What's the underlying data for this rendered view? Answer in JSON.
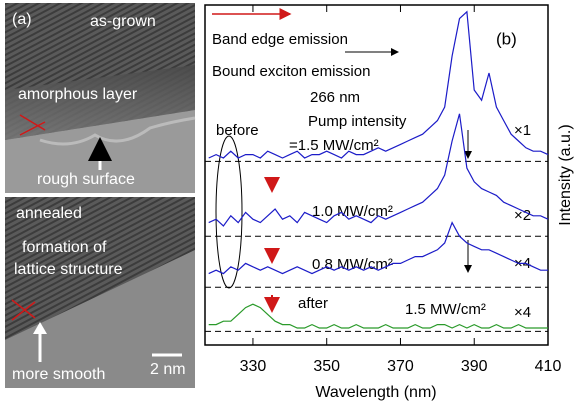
{
  "panel_a": {
    "label": "(a)",
    "top_texts": [
      "as-grown",
      "amorphous layer",
      "rough surface"
    ],
    "bottom_texts": [
      "annealed",
      "formation of",
      "lattice structure",
      "more smooth"
    ],
    "scale_bar": "2 nm"
  },
  "chart_data": {
    "type": "line",
    "panel_label": "(b)",
    "xlabel": "Wavelength (nm)",
    "ylabel": "Intensity (a.u.)",
    "xlim": [
      317,
      410
    ],
    "xticks": [
      330,
      350,
      370,
      390,
      410
    ],
    "ylim": [
      0,
      100
    ],
    "annotations": [
      "Band edge emission",
      "Bound exciton emission",
      "266 nm",
      "Pump intensity",
      "before",
      "after"
    ],
    "x": [
      318,
      320,
      322,
      324,
      326,
      328,
      330,
      332,
      334,
      336,
      338,
      340,
      342,
      344,
      346,
      348,
      350,
      352,
      354,
      356,
      358,
      360,
      362,
      364,
      366,
      368,
      370,
      372,
      374,
      376,
      378,
      380,
      382,
      384,
      386,
      388,
      390,
      392,
      394,
      396,
      398,
      400,
      402,
      404,
      406,
      408,
      410
    ],
    "series": [
      {
        "name": "=1.5 MW/cm²",
        "scale_label": "×1",
        "color": "#1c1cc8",
        "baseline": 54,
        "values": [
          55,
          56,
          55,
          57,
          55,
          56,
          56,
          55,
          57,
          56,
          55,
          56,
          57,
          55,
          56,
          56,
          57,
          56,
          55,
          57,
          56,
          56,
          57,
          58,
          57,
          58,
          59,
          60,
          61,
          62,
          64,
          66,
          70,
          85,
          96,
          98,
          75,
          72,
          80,
          70,
          66,
          62,
          60,
          58,
          57,
          57,
          56
        ]
      },
      {
        "name": "1.0 MW/cm²",
        "scale_label": "×2",
        "color": "#1c1cc8",
        "baseline": 32,
        "values": [
          36,
          37,
          35,
          38,
          36,
          39,
          37,
          36,
          38,
          40,
          37,
          38,
          36,
          39,
          38,
          37,
          36,
          38,
          39,
          37,
          38,
          37,
          36,
          38,
          37,
          38,
          39,
          40,
          41,
          42,
          44,
          46,
          50,
          60,
          68,
          52,
          48,
          46,
          45,
          44,
          42,
          41,
          40,
          39,
          38,
          38,
          37
        ]
      },
      {
        "name": "0.8 MW/cm²",
        "scale_label": "×4",
        "color": "#1c1cc8",
        "baseline": 17,
        "values": [
          21,
          22,
          21,
          23,
          22,
          24,
          23,
          22,
          23,
          22,
          21,
          22,
          23,
          22,
          21,
          22,
          23,
          22,
          23,
          22,
          23,
          22,
          23,
          22,
          23,
          24,
          24,
          25,
          26,
          26,
          27,
          28,
          30,
          36,
          32,
          30,
          29,
          28,
          28,
          27,
          26,
          25,
          24,
          24,
          23,
          22,
          22
        ]
      },
      {
        "name": "1.5 MW/cm²",
        "scale_label": "×4",
        "color": "#2a9a2a",
        "baseline": 4,
        "values": [
          6,
          6,
          7,
          7,
          9,
          11,
          12,
          11,
          9,
          7,
          6,
          6,
          5,
          5,
          6,
          5,
          5,
          6,
          5,
          5,
          6,
          5,
          5,
          5,
          6,
          5,
          5,
          5,
          6,
          5,
          5,
          6,
          6,
          5,
          6,
          5,
          6,
          5,
          5,
          6,
          5,
          5,
          6,
          5,
          5,
          5,
          5
        ]
      }
    ]
  }
}
